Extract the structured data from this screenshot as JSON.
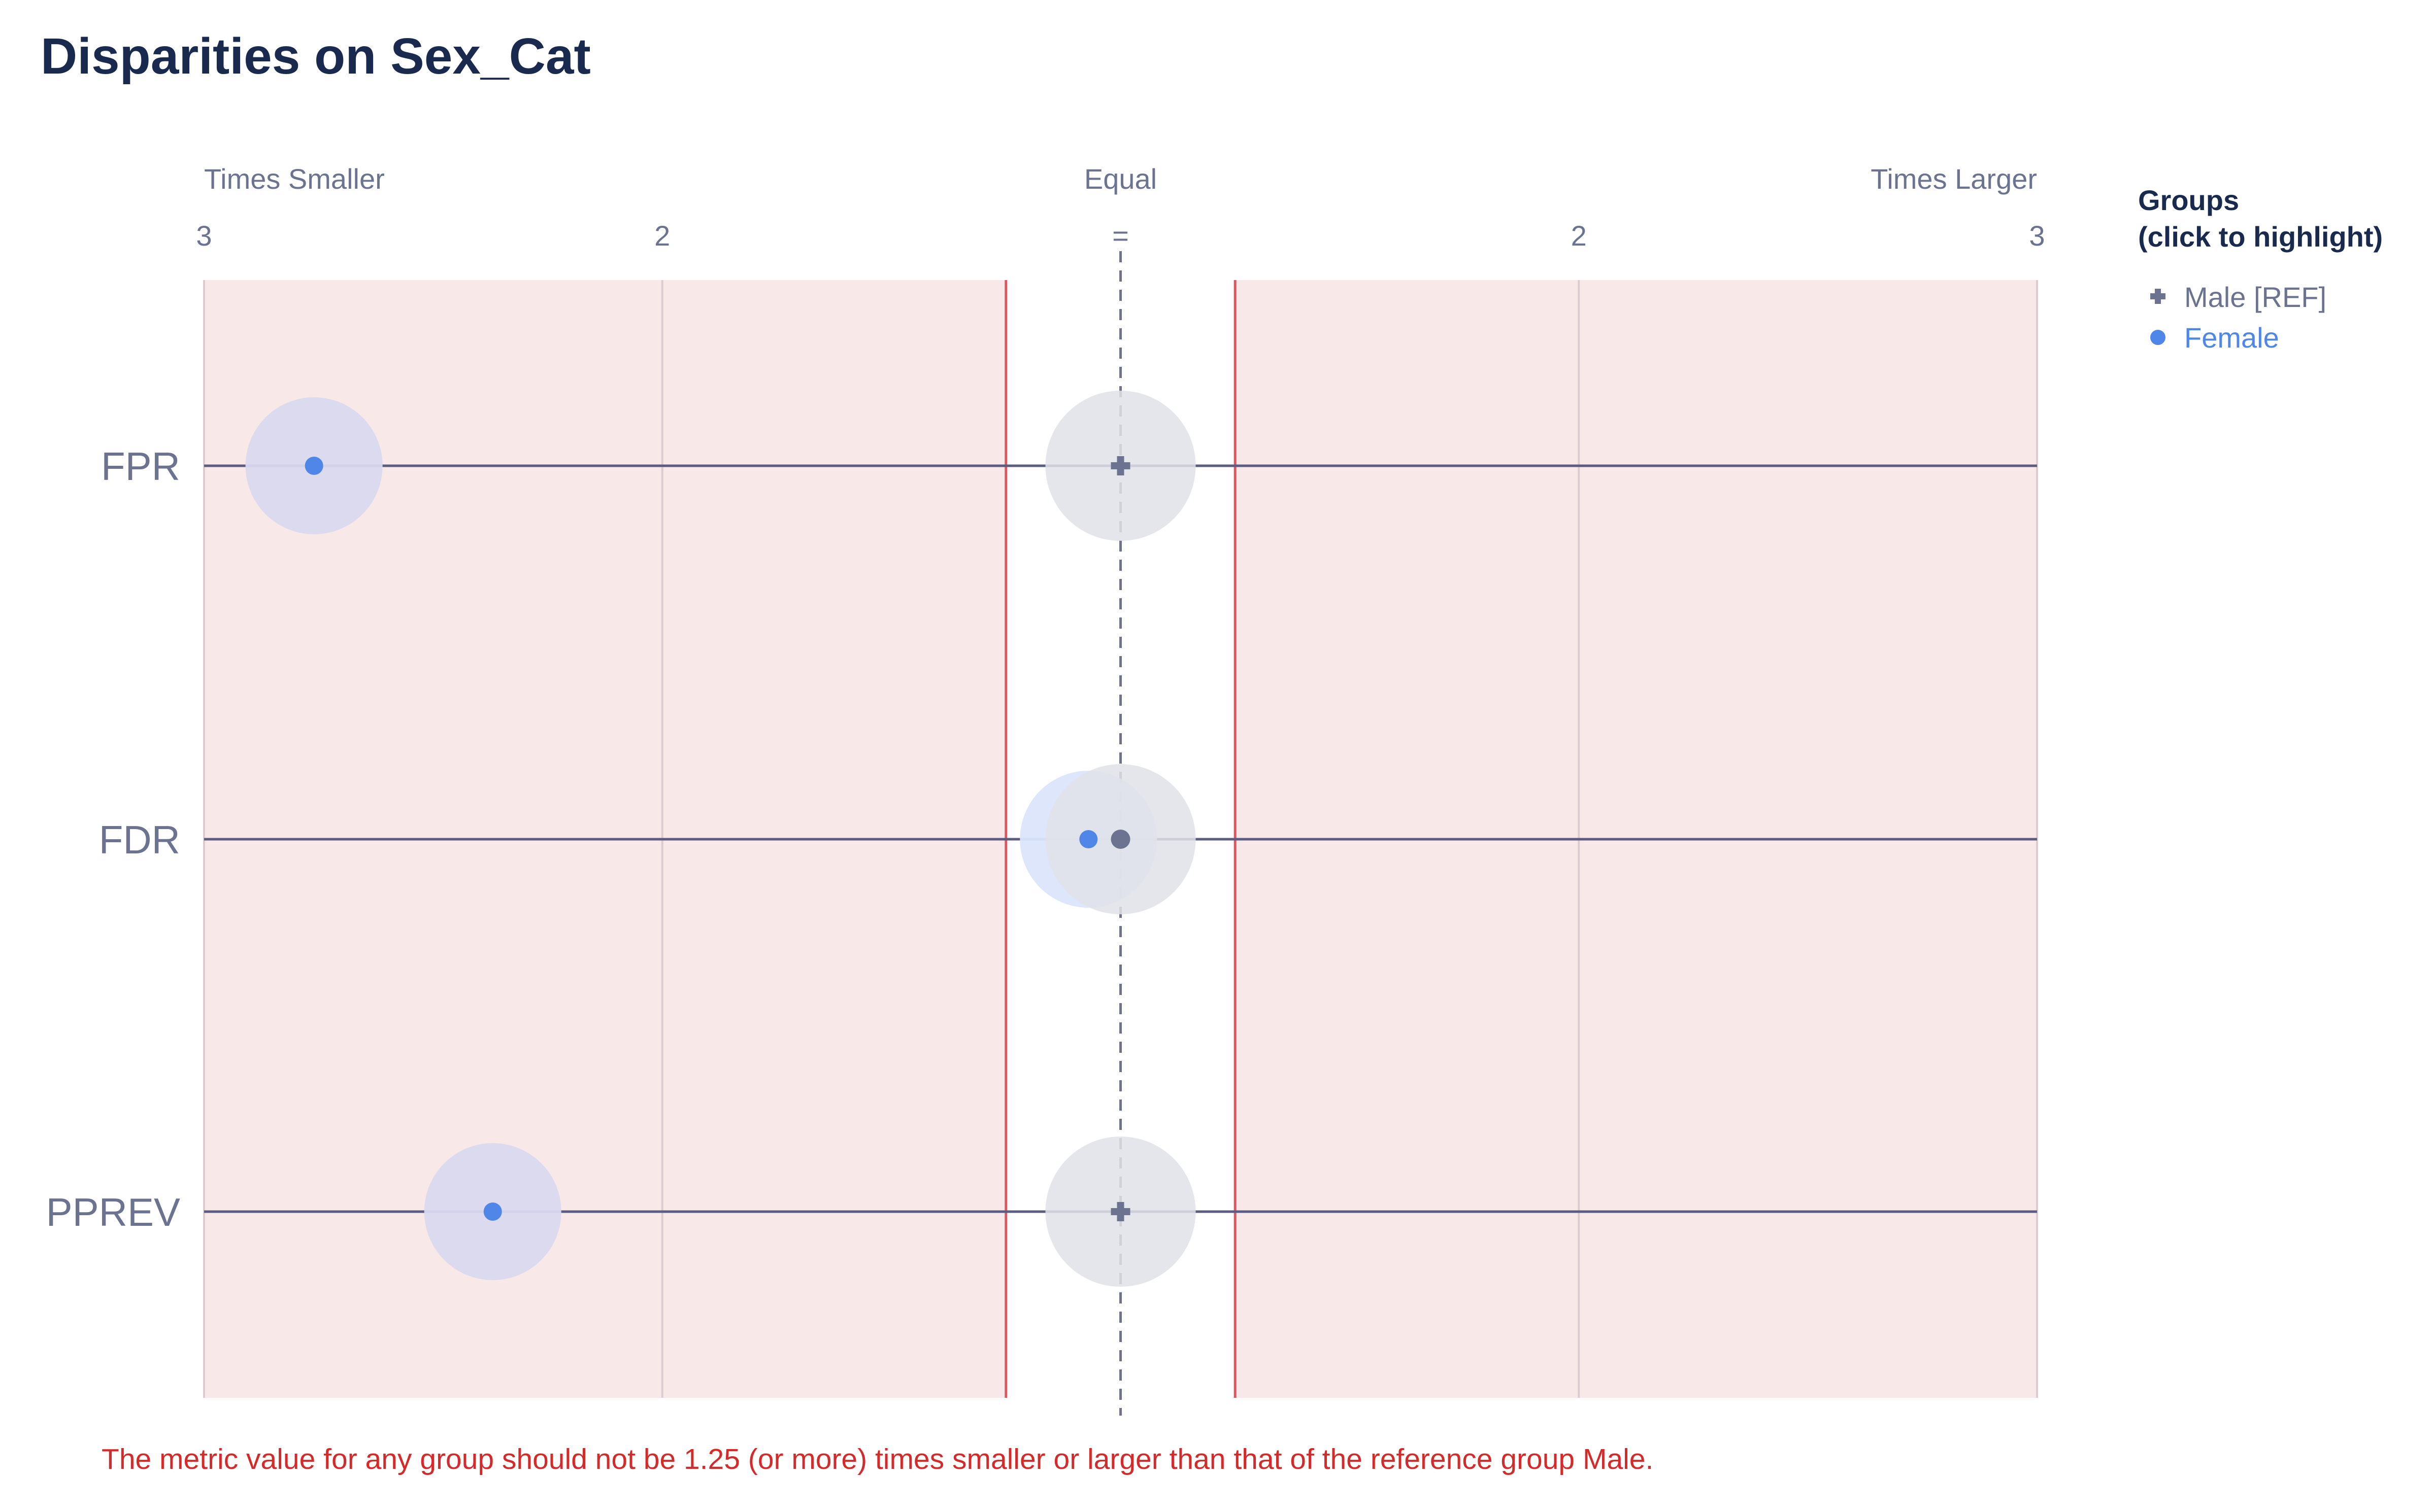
{
  "title": "Disparities on Sex_Cat",
  "chart_data": {
    "type": "scatter",
    "title": "Disparities on Sex_Cat",
    "x_axis": {
      "scale": "disparity ratio (times smaller / times larger relative to reference)",
      "range": [
        -3,
        3
      ],
      "top_labels": [
        "Times Smaller",
        "Equal",
        "Times Larger"
      ],
      "tick_labels": [
        "3",
        "2",
        "=",
        "2",
        "3"
      ],
      "tick_values": [
        -3,
        -2,
        1,
        2,
        3
      ]
    },
    "categories": [
      "FPR",
      "FDR",
      "PPREV"
    ],
    "threshold": {
      "ratio": 1.25,
      "lower": -1.25,
      "upper": 1.25
    },
    "series": [
      {
        "name": "Male [REF]",
        "marker": "cross",
        "color": "#6b7390",
        "values": [
          1,
          1,
          1
        ]
      },
      {
        "name": "Female",
        "marker": "circle",
        "color": "#4f86e8",
        "values": [
          -2.76,
          -1.07,
          -2.37
        ]
      }
    ],
    "grid": true,
    "legend_position": "right"
  },
  "legend": {
    "title_line1": "Groups",
    "title_line2": "(click to highlight)",
    "items": [
      {
        "label": "Male [REF]",
        "color": "#6b7390"
      },
      {
        "label": "Female",
        "color": "#4f86e8"
      }
    ]
  },
  "footnote": "The metric value for any group should not be 1.25 (or more) times smaller or larger than that of the reference group Male.",
  "colors": {
    "title": "#1a2a4f",
    "axis_text": "#6b7390",
    "fail_zone": "#f9e8e8",
    "threshold_line": "#e05560",
    "gridline": "#dcccd0",
    "row_line": "#5a5d80",
    "ref_bubble": "#e1e2e7",
    "female_bubble_fail": "#d9d9ef",
    "female_bubble_pass": "#dbe5fb",
    "footnote": "#d42a2a"
  }
}
